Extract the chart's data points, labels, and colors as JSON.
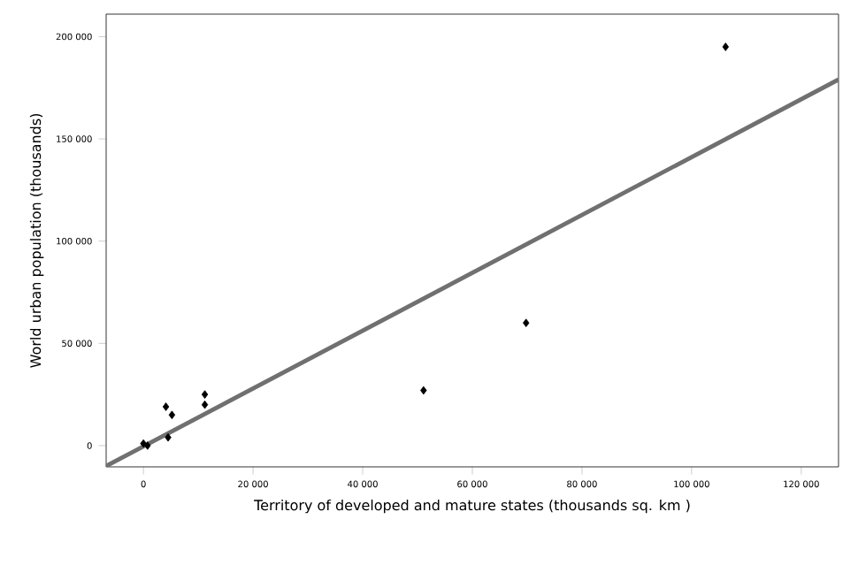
{
  "chart_data": {
    "type": "scatter",
    "xlabel": "Territory of developed and mature states (thousands sq. km )",
    "ylabel": "World urban population (thousands)",
    "xlim": [
      -6800,
      126800
    ],
    "ylim": [
      -10400,
      211000
    ],
    "xticks": [
      0,
      {
        "value": 20000,
        "label": "20 000"
      },
      {
        "value": 40000,
        "label": "40 000"
      },
      {
        "value": 60000,
        "label": "60 000"
      },
      {
        "value": 80000,
        "label": "80 000"
      },
      {
        "value": 100000,
        "label": "100 000"
      },
      {
        "value": 120000,
        "label": "120 000"
      }
    ],
    "yticks": [
      0,
      {
        "value": 50000,
        "label": "50 000"
      },
      {
        "value": 100000,
        "label": "100 000"
      },
      {
        "value": 150000,
        "label": "150 000"
      },
      {
        "value": 200000,
        "label": "200 000"
      }
    ],
    "grid": false,
    "marker": "diamond",
    "series": [
      {
        "color": "#000000",
        "x": [
          0,
          750,
          4100,
          4500,
          5200,
          11200,
          11200,
          51100,
          69800,
          106200
        ],
        "values": [
          1000,
          0,
          19000,
          4000,
          15000,
          25000,
          20000,
          27000,
          60000,
          195000
        ]
      },
      {
        "type": "line",
        "color": "#707070",
        "marker": "none",
        "x": [
          -6800,
          126800
        ],
        "values": [
          -10000,
          179000
        ]
      }
    ]
  }
}
